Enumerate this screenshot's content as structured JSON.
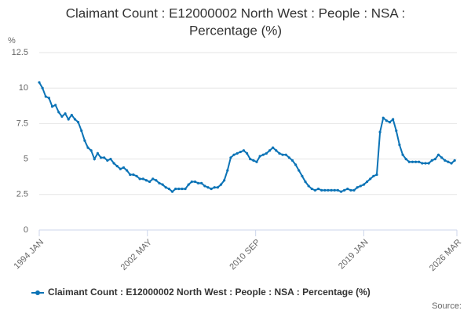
{
  "chart_data": {
    "type": "line",
    "title_lines": [
      "Claimant Count : E12000002 North West : People : NSA :",
      "Percentage (%)"
    ],
    "y_unit": "%",
    "source_label": "Source:",
    "x": [
      1994,
      1994.25,
      1994.5,
      1994.75,
      1995,
      1995.25,
      1995.5,
      1995.75,
      1996,
      1996.25,
      1996.5,
      1996.75,
      1997,
      1997.25,
      1997.5,
      1997.75,
      1998,
      1998.25,
      1998.5,
      1998.75,
      1999,
      1999.25,
      1999.5,
      1999.75,
      2000,
      2000.25,
      2000.5,
      2000.75,
      2001,
      2001.25,
      2001.5,
      2001.75,
      2002,
      2002.25,
      2002.5,
      2002.75,
      2003,
      2003.25,
      2003.5,
      2003.75,
      2004,
      2004.25,
      2004.5,
      2004.75,
      2005,
      2005.25,
      2005.5,
      2005.75,
      2006,
      2006.25,
      2006.5,
      2006.75,
      2007,
      2007.25,
      2007.5,
      2007.75,
      2008,
      2008.25,
      2008.5,
      2008.75,
      2009,
      2009.25,
      2009.5,
      2009.75,
      2010,
      2010.25,
      2010.5,
      2010.75,
      2011,
      2011.25,
      2011.5,
      2011.75,
      2012,
      2012.25,
      2012.5,
      2012.75,
      2013,
      2013.25,
      2013.5,
      2013.75,
      2014,
      2014.25,
      2014.5,
      2014.75,
      2015,
      2015.25,
      2015.5,
      2015.75,
      2016,
      2016.25,
      2016.5,
      2016.75,
      2017,
      2017.25,
      2017.5,
      2017.75,
      2018,
      2018.25,
      2018.5,
      2018.75,
      2019,
      2019.25,
      2019.5,
      2019.75,
      2020,
      2020.25,
      2020.5,
      2020.75,
      2021,
      2021.25,
      2021.5,
      2021.75,
      2022,
      2022.25,
      2022.5,
      2022.75,
      2023,
      2023.25,
      2023.5,
      2023.75,
      2024,
      2024.25,
      2024.5,
      2024.75,
      2025,
      2025.25,
      2025.5,
      2025.75,
      2026
    ],
    "series": [
      {
        "name": "Claimant Count : E12000002 North West : People : NSA : Percentage (%)",
        "color": "#0b73b6",
        "values": [
          10.4,
          10.0,
          9.4,
          9.3,
          8.7,
          8.8,
          8.3,
          8.0,
          8.2,
          7.8,
          8.1,
          7.8,
          7.6,
          7.0,
          6.3,
          5.8,
          5.6,
          5.0,
          5.4,
          5.1,
          5.1,
          4.9,
          5.0,
          4.7,
          4.5,
          4.3,
          4.4,
          4.2,
          3.9,
          3.9,
          3.8,
          3.6,
          3.6,
          3.5,
          3.4,
          3.6,
          3.5,
          3.3,
          3.2,
          3.0,
          2.9,
          2.7,
          2.9,
          2.9,
          2.9,
          2.9,
          3.2,
          3.4,
          3.4,
          3.3,
          3.3,
          3.1,
          3.0,
          2.9,
          3.0,
          3.0,
          3.2,
          3.5,
          4.2,
          5.1,
          5.3,
          5.4,
          5.5,
          5.6,
          5.4,
          5.0,
          4.9,
          4.8,
          5.2,
          5.3,
          5.4,
          5.6,
          5.8,
          5.6,
          5.4,
          5.3,
          5.3,
          5.1,
          4.9,
          4.6,
          4.2,
          3.8,
          3.4,
          3.1,
          2.9,
          2.8,
          2.9,
          2.8,
          2.8,
          2.8,
          2.8,
          2.8,
          2.8,
          2.7,
          2.8,
          2.9,
          2.8,
          2.8,
          3.0,
          3.1,
          3.2,
          3.4,
          3.6,
          3.8,
          3.9,
          6.9,
          7.9,
          7.7,
          7.6,
          7.8,
          7.0,
          6.0,
          5.3,
          5.0,
          4.8,
          4.8,
          4.8,
          4.8,
          4.7,
          4.7,
          4.7,
          4.9,
          5.0,
          5.3,
          5.1,
          4.9,
          4.8,
          4.7,
          4.9
        ]
      }
    ],
    "xlim": [
      1994,
      2026.17
    ],
    "xticks": [
      {
        "value": 1994,
        "label": "1994 JAN"
      },
      {
        "value": 2002.33,
        "label": "2002 MAY"
      },
      {
        "value": 2010.67,
        "label": "2010 SEP"
      },
      {
        "value": 2019,
        "label": "2019 JAN"
      },
      {
        "value": 2026.17,
        "label": "2026 MAR"
      }
    ],
    "ylim": [
      0,
      12.5
    ],
    "yticks": [
      0,
      2.5,
      5,
      7.5,
      10,
      12.5
    ],
    "grid": true,
    "legend": "bottom"
  }
}
